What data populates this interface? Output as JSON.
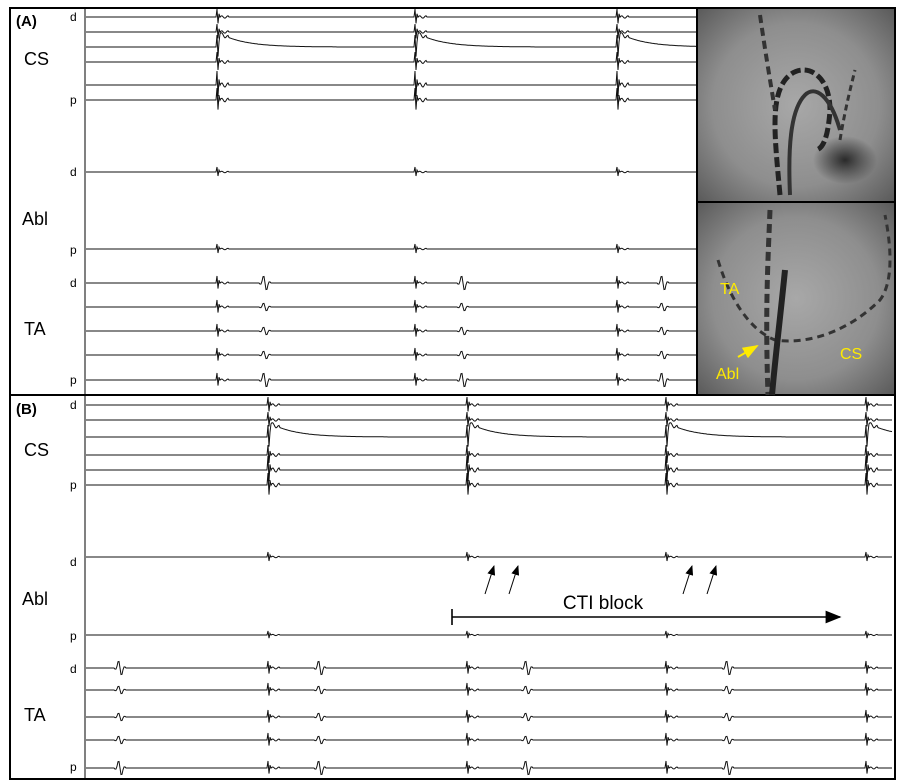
{
  "panel_a": {
    "label": "(A)",
    "groups": [
      {
        "name": "CS",
        "distal": "d",
        "proximal": "p"
      },
      {
        "name": "Abl",
        "distal": "d",
        "proximal": "p"
      },
      {
        "name": "TA",
        "distal": "d",
        "proximal": "p"
      }
    ],
    "image_labels": [
      "TA",
      "Abl",
      "CS"
    ]
  },
  "panel_b": {
    "label": "(B)",
    "groups": [
      {
        "name": "CS",
        "distal": "d",
        "proximal": "p"
      },
      {
        "name": "Abl",
        "distal": "d",
        "proximal": "p"
      },
      {
        "name": "TA",
        "distal": "d",
        "proximal": "p"
      }
    ],
    "annotation": "CTI block"
  }
}
